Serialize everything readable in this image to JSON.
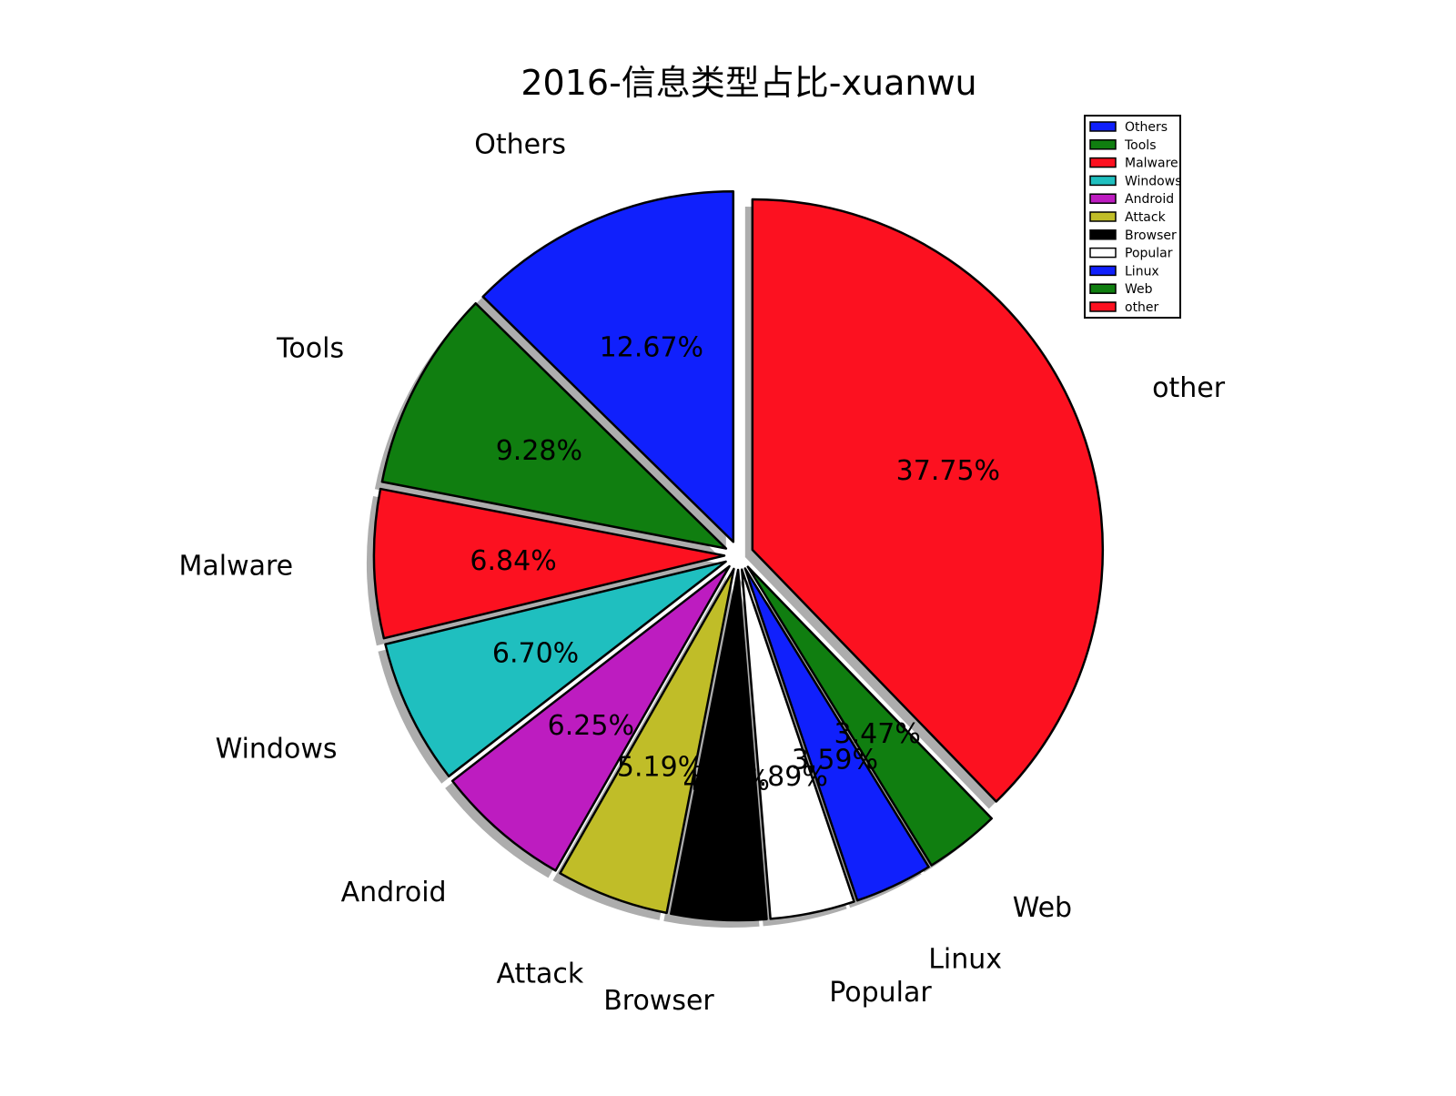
{
  "chart_data": {
    "type": "pie",
    "title": "2016-信息类型占比-xuanwu",
    "categories": [
      "other",
      "Web",
      "Linux",
      "Popular",
      "Browser",
      "Attack",
      "Android",
      "Windows",
      "Malware",
      "Tools",
      "Others"
    ],
    "values": [
      37.75,
      3.47,
      3.59,
      3.89,
      4.37,
      5.19,
      6.25,
      6.7,
      6.84,
      9.28,
      12.67
    ],
    "labels": [
      "37.75%",
      "3.47%",
      "3.59%",
      "3.89%",
      "4.37%",
      "5.19%",
      "6.25%",
      "6.70%",
      "6.84%",
      "9.28%",
      "12.67%"
    ],
    "colors": [
      "#fc1120",
      "#107e10",
      "#1020fc",
      "#ffffff",
      "#000000",
      "#c0bd28",
      "#bd1cc0",
      "#1fbfbf",
      "#fc1120",
      "#107e10",
      "#1020fc"
    ],
    "start_angle_deg": 90,
    "direction": "clockwise",
    "exploded": true,
    "shadow": true,
    "legend": {
      "position": "top-right",
      "entries": [
        "Others",
        "Tools",
        "Malware",
        "Windows",
        "Android",
        "Attack",
        "Browser",
        "Popular",
        "Linux",
        "Web",
        "other"
      ],
      "colors": [
        "#1020fc",
        "#107e10",
        "#fc1120",
        "#1fbfbf",
        "#bd1cc0",
        "#c0bd28",
        "#000000",
        "#ffffff",
        "#1020fc",
        "#107e10",
        "#fc1120"
      ]
    }
  }
}
